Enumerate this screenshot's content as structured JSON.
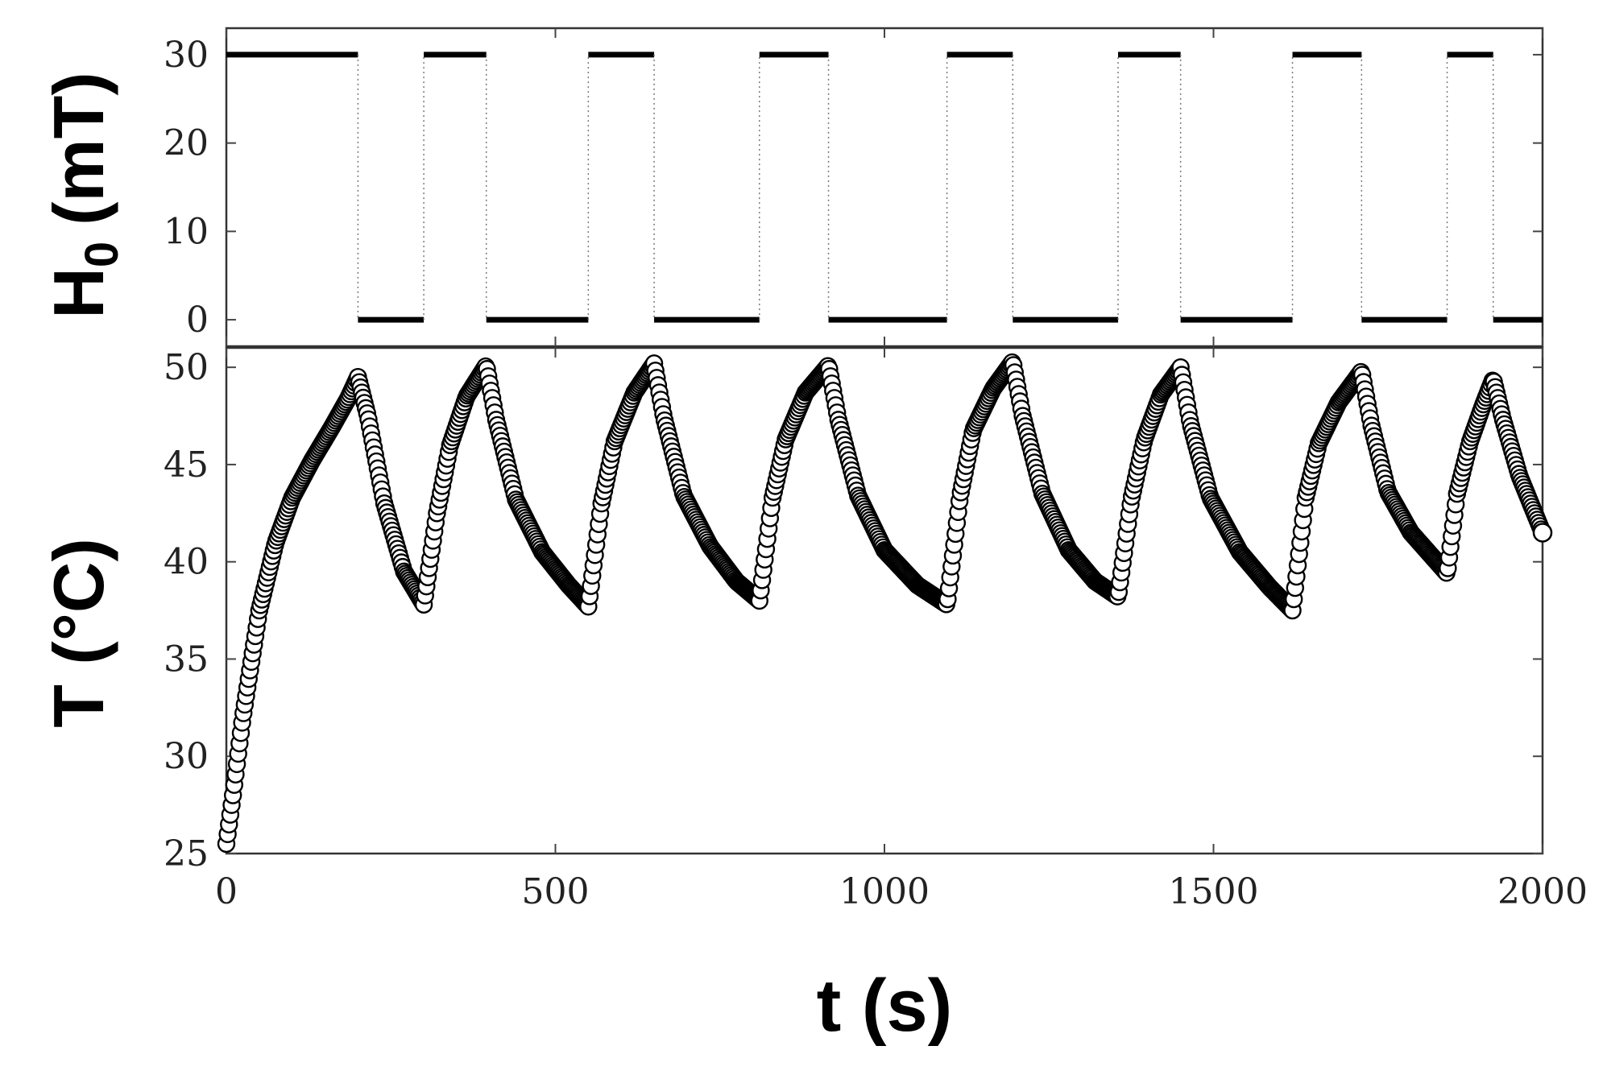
{
  "chart_data": [
    {
      "type": "line",
      "panel": "top",
      "ylabel": "H",
      "ylabel_subscript": "0",
      "ylabel_unit": "(mT)",
      "xlim": [
        0,
        2000
      ],
      "ylim": [
        -3,
        33
      ],
      "yticks": [
        0,
        10,
        20,
        30
      ],
      "grid": false,
      "step": true,
      "series": [
        {
          "x": [
            0,
            200,
            200,
            300,
            300,
            395,
            395,
            550,
            550,
            650,
            650,
            810,
            810,
            915,
            915,
            1095,
            1095,
            1195,
            1195,
            1355,
            1355,
            1450,
            1450,
            1620,
            1620,
            1725,
            1725,
            1855,
            1855,
            1925,
            1925,
            2000
          ],
          "y": [
            30,
            30,
            0,
            0,
            30,
            30,
            0,
            0,
            30,
            30,
            0,
            0,
            30,
            30,
            0,
            0,
            30,
            30,
            0,
            0,
            30,
            30,
            0,
            0,
            30,
            30,
            0,
            0,
            30,
            30,
            0,
            0
          ]
        }
      ]
    },
    {
      "type": "scatter",
      "panel": "bottom",
      "ylabel": "T (°C)",
      "xlabel": "t (s)",
      "xlim": [
        0,
        2000
      ],
      "ylim": [
        25,
        51
      ],
      "xticks": [
        0,
        500,
        1000,
        1500,
        2000
      ],
      "yticks": [
        25,
        30,
        35,
        40,
        45,
        50
      ],
      "grid": false,
      "marker": "open-circle",
      "series": [
        {
          "x": [
            0,
            10,
            25,
            50,
            75,
            100,
            130,
            160,
            185,
            200,
            215,
            240,
            270,
            300,
            320,
            340,
            365,
            395,
            410,
            440,
            480,
            520,
            550,
            570,
            590,
            620,
            650,
            665,
            695,
            735,
            775,
            810,
            830,
            850,
            880,
            915,
            930,
            960,
            1000,
            1050,
            1095,
            1115,
            1135,
            1165,
            1195,
            1210,
            1240,
            1280,
            1320,
            1355,
            1375,
            1395,
            1420,
            1450,
            1465,
            1495,
            1540,
            1585,
            1620,
            1640,
            1660,
            1690,
            1725,
            1740,
            1765,
            1800,
            1855,
            1870,
            1890,
            1910,
            1925,
            1940,
            1965,
            2000
          ],
          "y": [
            25.5,
            28,
            32,
            37.5,
            41,
            43.3,
            45.2,
            46.9,
            48.4,
            49.5,
            47.5,
            43,
            39.5,
            37.8,
            42.5,
            46,
            48.5,
            50.1,
            47.3,
            43.2,
            40.5,
            38.8,
            37.7,
            43,
            46.2,
            48.7,
            50.2,
            47.4,
            43.4,
            40.8,
            39,
            38,
            43.3,
            46.3,
            48.7,
            50.1,
            47.3,
            43.4,
            40.6,
            38.8,
            37.8,
            43.4,
            46.8,
            48.9,
            50.3,
            47.5,
            43.5,
            40.6,
            39,
            38.2,
            43.2,
            46.3,
            48.6,
            50.0,
            47.1,
            43.3,
            40.5,
            38.7,
            37.5,
            43.3,
            46.1,
            48.2,
            49.8,
            47.0,
            43.6,
            41.5,
            39.4,
            43.5,
            46.2,
            48.1,
            49.4,
            47.3,
            44.4,
            41.5
          ]
        }
      ]
    }
  ]
}
